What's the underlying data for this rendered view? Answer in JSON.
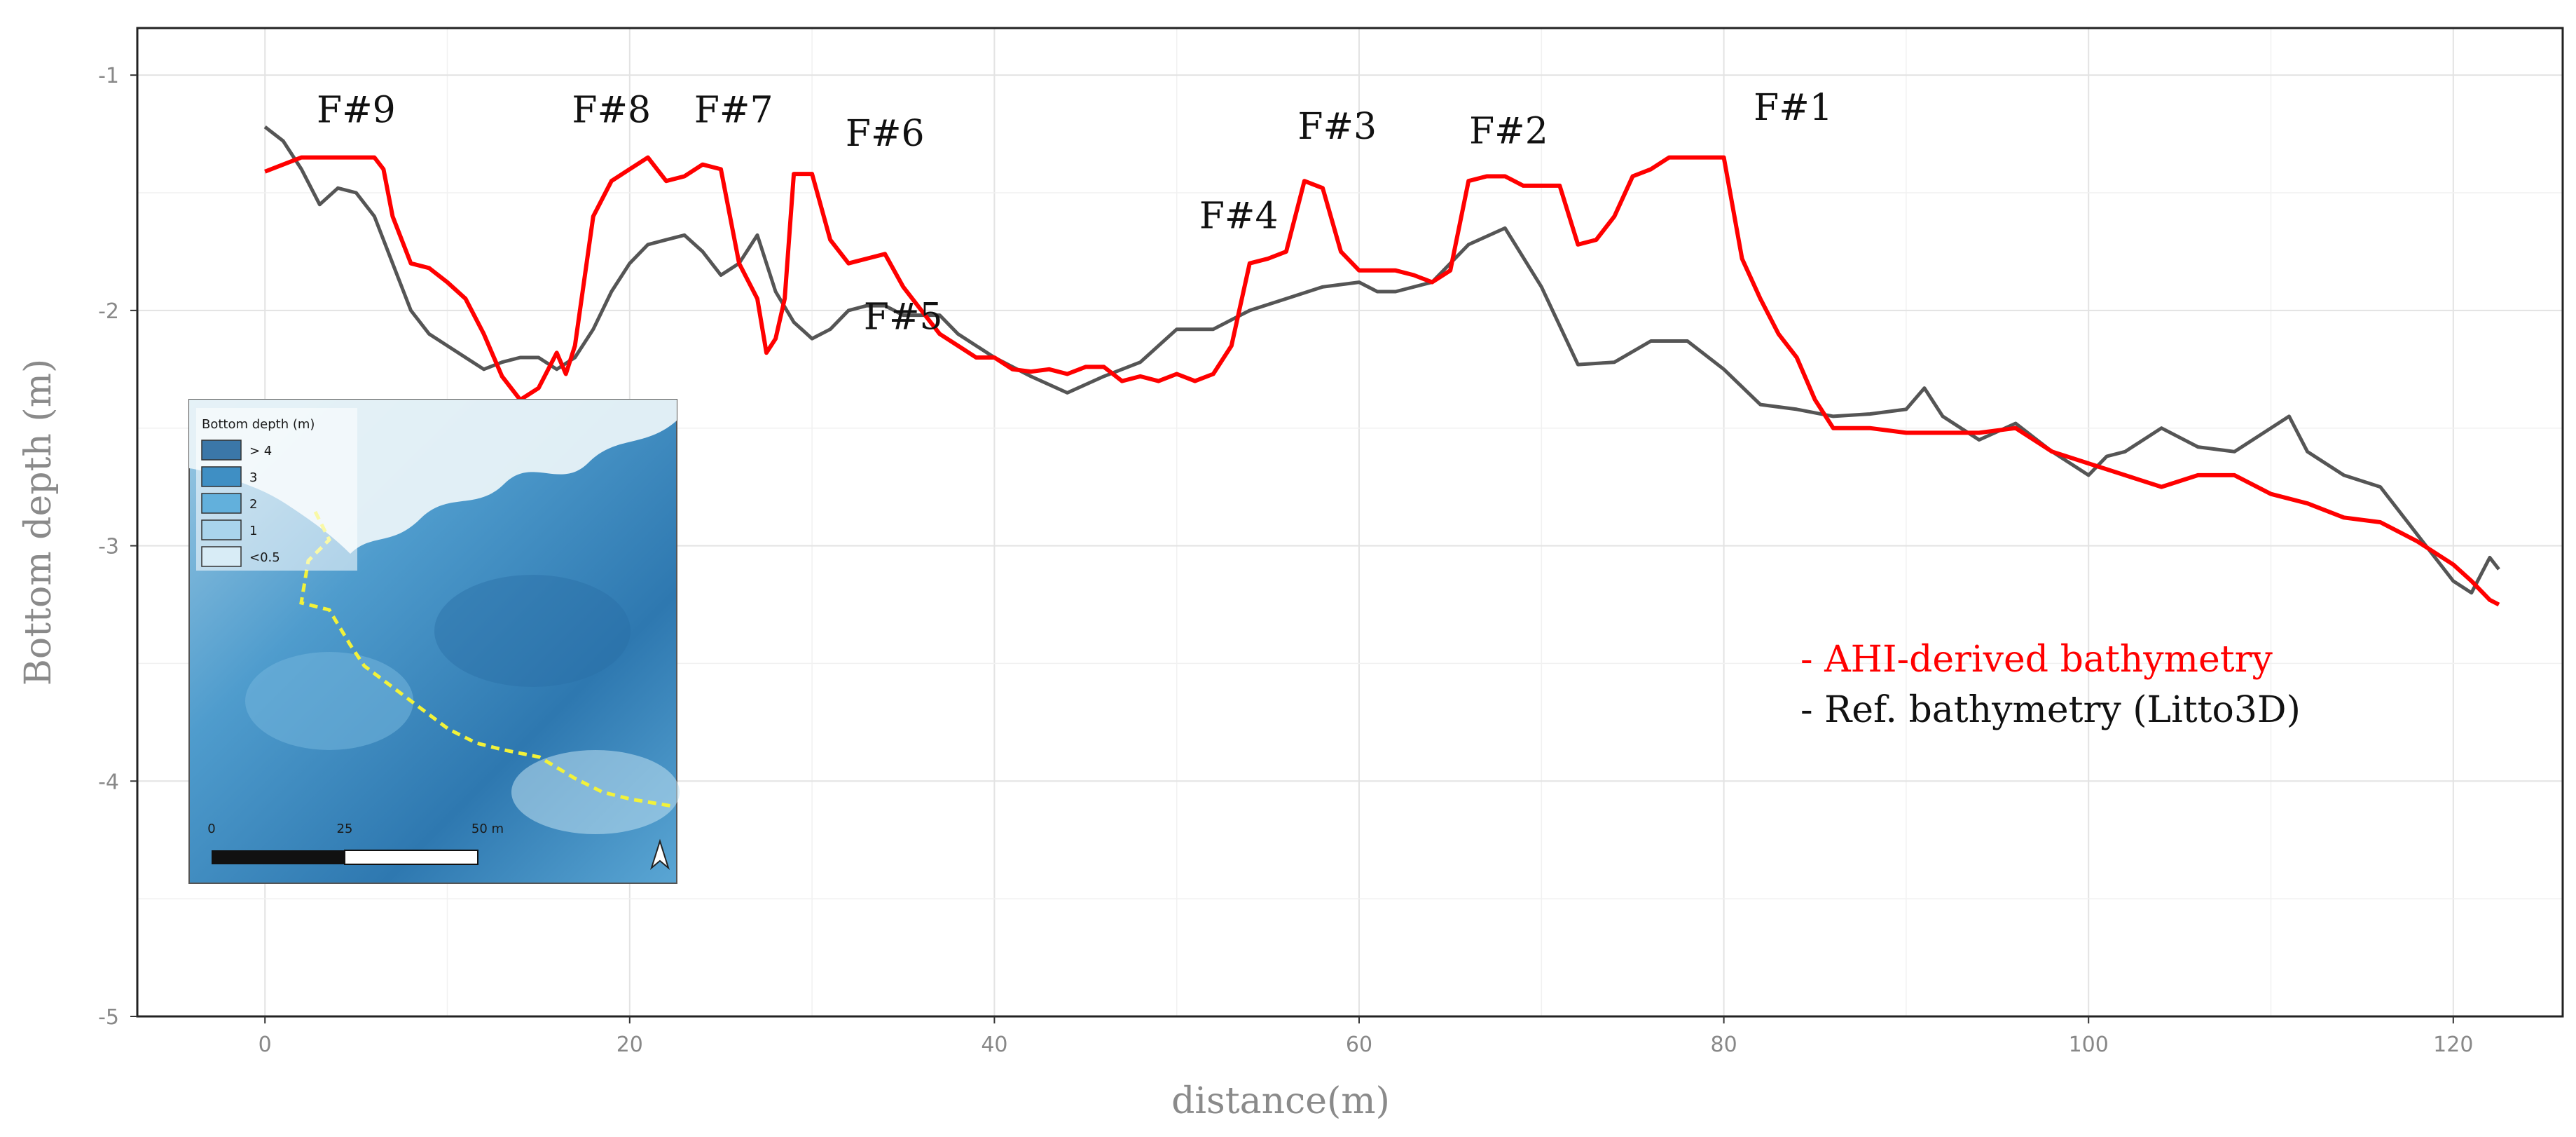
{
  "chart_data": {
    "type": "line",
    "xlabel": "distance(m)",
    "ylabel": "Bottom depth (m)",
    "xlim": [
      -7,
      126
    ],
    "ylim": [
      -5,
      -0.8
    ],
    "xticks": [
      0,
      20,
      40,
      60,
      80,
      100,
      120
    ],
    "yticks": [
      -1,
      -2,
      -3,
      -4,
      -5
    ],
    "grid": true,
    "legend_position": "bottom-right",
    "series": [
      {
        "name": "- AHI-derived bathymetry",
        "color": "#ff0000",
        "x": [
          0,
          1,
          2,
          4,
          6,
          6.5,
          7,
          8,
          9,
          10,
          11,
          12,
          13,
          14,
          15,
          16,
          16.5,
          17,
          18,
          19,
          20,
          21,
          22,
          23,
          24,
          25,
          26,
          27,
          27.5,
          28,
          28.5,
          29,
          30,
          31,
          32,
          33,
          34,
          35,
          36,
          37,
          38,
          39,
          40,
          41,
          42,
          43,
          44,
          45,
          46,
          47,
          48,
          49,
          50,
          51,
          52,
          53,
          54,
          55,
          56,
          57,
          58,
          59,
          60,
          61,
          62,
          63,
          64,
          65,
          66,
          67,
          68,
          69,
          70,
          71,
          72,
          73,
          74,
          75,
          76,
          77,
          78,
          79,
          80,
          81,
          82,
          83,
          84,
          85,
          86,
          88,
          90,
          92,
          94,
          96,
          98,
          100,
          102,
          104,
          106,
          108,
          110,
          112,
          114,
          116,
          118,
          120,
          121,
          122,
          122.5
        ],
        "values": [
          -1.41,
          -1.38,
          -1.35,
          -1.35,
          -1.35,
          -1.4,
          -1.6,
          -1.8,
          -1.82,
          -1.88,
          -1.95,
          -2.1,
          -2.28,
          -2.38,
          -2.33,
          -2.18,
          -2.27,
          -2.15,
          -1.6,
          -1.45,
          -1.4,
          -1.35,
          -1.45,
          -1.43,
          -1.38,
          -1.4,
          -1.8,
          -1.95,
          -2.18,
          -2.12,
          -1.95,
          -1.42,
          -1.42,
          -1.7,
          -1.8,
          -1.78,
          -1.76,
          -1.9,
          -2.0,
          -2.1,
          -2.15,
          -2.2,
          -2.2,
          -2.25,
          -2.26,
          -2.25,
          -2.27,
          -2.24,
          -2.24,
          -2.3,
          -2.28,
          -2.3,
          -2.27,
          -2.3,
          -2.27,
          -2.15,
          -1.8,
          -1.78,
          -1.75,
          -1.45,
          -1.48,
          -1.75,
          -1.83,
          -1.83,
          -1.83,
          -1.85,
          -1.88,
          -1.83,
          -1.45,
          -1.43,
          -1.43,
          -1.47,
          -1.47,
          -1.47,
          -1.72,
          -1.7,
          -1.6,
          -1.43,
          -1.4,
          -1.35,
          -1.35,
          -1.35,
          -1.35,
          -1.78,
          -1.95,
          -2.1,
          -2.2,
          -2.38,
          -2.5,
          -2.5,
          -2.52,
          -2.52,
          -2.52,
          -2.5,
          -2.6,
          -2.65,
          -2.7,
          -2.75,
          -2.7,
          -2.7,
          -2.78,
          -2.82,
          -2.88,
          -2.9,
          -2.98,
          -3.08,
          -3.15,
          -3.23,
          -3.25
        ]
      },
      {
        "name": "- Ref. bathymetry (Litto3D)",
        "color": "#555555",
        "x": [
          0,
          1,
          2,
          3,
          4,
          5,
          6,
          7,
          8,
          9,
          10,
          11,
          12,
          13,
          14,
          15,
          16,
          17,
          18,
          19,
          20,
          21,
          22,
          23,
          24,
          25,
          26,
          27,
          28,
          29,
          30,
          31,
          32,
          33,
          34,
          35,
          36,
          37,
          38,
          40,
          42,
          44,
          46,
          48,
          50,
          52,
          54,
          56,
          58,
          60,
          61,
          62,
          64,
          66,
          68,
          70,
          72,
          74,
          76,
          78,
          80,
          82,
          84,
          86,
          88,
          90,
          91,
          92,
          94,
          96,
          98,
          100,
          101,
          102,
          104,
          106,
          108,
          110,
          111,
          112,
          114,
          116,
          118,
          120,
          121,
          122,
          122.5
        ],
        "values": [
          -1.22,
          -1.28,
          -1.4,
          -1.55,
          -1.48,
          -1.5,
          -1.6,
          -1.8,
          -2.0,
          -2.1,
          -2.15,
          -2.2,
          -2.25,
          -2.22,
          -2.2,
          -2.2,
          -2.25,
          -2.2,
          -2.08,
          -1.92,
          -1.8,
          -1.72,
          -1.7,
          -1.68,
          -1.75,
          -1.85,
          -1.8,
          -1.68,
          -1.92,
          -2.05,
          -2.12,
          -2.08,
          -2.0,
          -1.98,
          -1.98,
          -2.02,
          -2.02,
          -2.02,
          -2.1,
          -2.2,
          -2.28,
          -2.35,
          -2.28,
          -2.22,
          -2.08,
          -2.08,
          -2.0,
          -1.95,
          -1.9,
          -1.88,
          -1.92,
          -1.92,
          -1.88,
          -1.72,
          -1.65,
          -1.9,
          -2.23,
          -2.22,
          -2.13,
          -2.13,
          -2.25,
          -2.4,
          -2.42,
          -2.45,
          -2.44,
          -2.42,
          -2.33,
          -2.45,
          -2.55,
          -2.48,
          -2.6,
          -2.7,
          -2.62,
          -2.6,
          -2.5,
          -2.58,
          -2.6,
          -2.5,
          -2.45,
          -2.6,
          -2.7,
          -2.75,
          -2.95,
          -3.15,
          -3.2,
          -3.05,
          -3.1
        ]
      }
    ],
    "annotations": [
      {
        "text": "F#9",
        "x": 5,
        "y": -1.2
      },
      {
        "text": "F#8",
        "x": 19,
        "y": -1.2
      },
      {
        "text": "F#7",
        "x": 25.7,
        "y": -1.2
      },
      {
        "text": "F#6",
        "x": 34,
        "y": -1.3
      },
      {
        "text": "F#5",
        "x": 35,
        "y": -2.08
      },
      {
        "text": "F#4",
        "x": 53.4,
        "y": -1.65
      },
      {
        "text": "F#3",
        "x": 58.8,
        "y": -1.27
      },
      {
        "text": "F#2",
        "x": 68.2,
        "y": -1.29
      },
      {
        "text": "F#1",
        "x": 83.8,
        "y": -1.19
      }
    ]
  },
  "inset": {
    "legend_title": "Bottom depth (m)",
    "legend_items": [
      {
        "label": "> 4",
        "color": "#3b77a8"
      },
      {
        "label": "3",
        "color": "#3f8fc4"
      },
      {
        "label": "2",
        "color": "#62b0dc"
      },
      {
        "label": "1",
        "color": "#a9d4ec"
      },
      {
        "label": "<0.5",
        "color": "#d8ecf6"
      }
    ],
    "scale_labels": [
      "0",
      "25",
      "50 m"
    ]
  }
}
